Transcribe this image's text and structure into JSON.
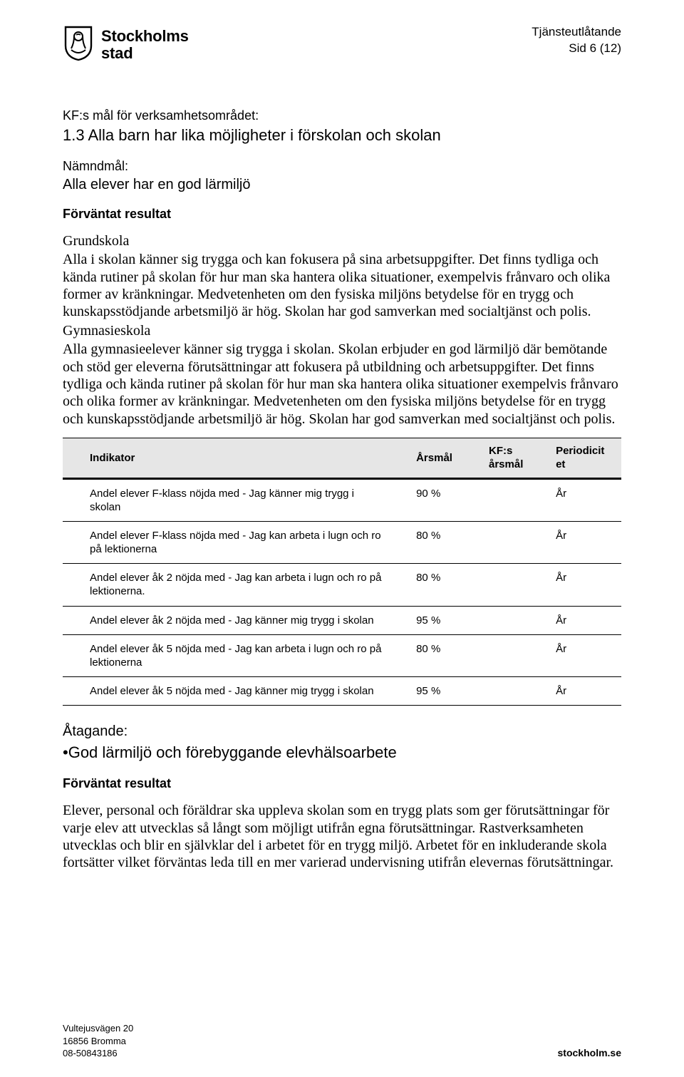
{
  "header": {
    "logo_line1": "Stockholms",
    "logo_line2": "stad",
    "doc_type": "Tjänsteutlåtande",
    "page_ref": "Sid 6 (12)"
  },
  "kf_label": "KF:s mål för verksamhetsområdet:",
  "goal_title": "1.3 Alla barn har lika möjligheter i förskolan och skolan",
  "namndmal_label": "Nämndmål:",
  "namndmal_text": "Alla elever har en god lärmiljö",
  "expected_label": "Förväntat resultat",
  "grundskola_label": "Grundskola",
  "grundskola_text": "Alla i skolan känner sig trygga och kan fokusera på sina arbetsuppgifter. Det finns tydliga och kända rutiner på skolan för hur man ska hantera olika situationer, exempelvis frånvaro och olika former av kränkningar. Medvetenheten om den fysiska miljöns betydelse för en trygg och kunskapsstödjande arbetsmiljö är hög. Skolan har god samverkan med socialtjänst och polis.",
  "gymnasie_label": "Gymnasieskola",
  "gymnasie_text": "Alla gymnasieelever känner sig trygga i skolan. Skolan erbjuder en god lärmiljö där bemötande och stöd ger eleverna förutsättningar att fokusera på utbildning och arbetsuppgifter. Det finns tydliga och kända rutiner på skolan för hur man ska hantera olika situationer exempelvis frånvaro och olika former av kränkningar. Medvetenheten om den fysiska miljöns betydelse för en trygg och kunskapsstödjande arbetsmiljö är hög. Skolan har god samverkan med socialtjänst och polis.",
  "table": {
    "headers": {
      "c1": "Indikator",
      "c2": "Årsmål",
      "c3_l1": "KF:s",
      "c3_l2": "årsmål",
      "c4_l1": "Periodicit",
      "c4_l2": "et"
    },
    "rows": [
      {
        "c1": "Andel elever F-klass nöjda med  - Jag känner mig trygg i skolan",
        "c2": "90 %",
        "c3": "",
        "c4": "År"
      },
      {
        "c1": "Andel elever F-klass nöjda med - Jag kan arbeta i lugn och ro på lektionerna",
        "c2": "80 %",
        "c3": "",
        "c4": "År"
      },
      {
        "c1": "Andel elever åk 2 nöjda med - Jag kan arbeta i lugn och ro på lektionerna.",
        "c2": "80 %",
        "c3": "",
        "c4": "År"
      },
      {
        "c1": "Andel elever åk 2 nöjda med - Jag känner mig trygg i skolan",
        "c2": "95 %",
        "c3": "",
        "c4": "År"
      },
      {
        "c1": "Andel elever åk 5 nöjda med - Jag kan arbeta i lugn och ro på lektionerna",
        "c2": "80 %",
        "c3": "",
        "c4": "År"
      },
      {
        "c1": "Andel elever åk 5 nöjda med - Jag känner mig trygg i skolan",
        "c2": "95 %",
        "c3": "",
        "c4": "År"
      }
    ]
  },
  "atagande_label": "Åtagande:",
  "atagande_text": "•God lärmiljö och förebyggande elevhälsoarbete",
  "expected2_label": "Förväntat resultat",
  "expected2_text": "Elever, personal och föräldrar ska uppleva skolan som en trygg plats som ger förutsättningar för varje elev att utvecklas så långt som möjligt utifrån egna förutsättningar. Rastverksamheten utvecklas och blir en självklar del i arbetet för en trygg miljö. Arbetet för en inkluderande skola fortsätter vilket förväntas leda till en mer varierad undervisning utifrån elevernas förutsättningar.",
  "footer": {
    "addr1": "Vultejusvägen 20",
    "addr2": "16856 Bromma",
    "addr3": "08-50843186",
    "site": "stockholm.se"
  }
}
